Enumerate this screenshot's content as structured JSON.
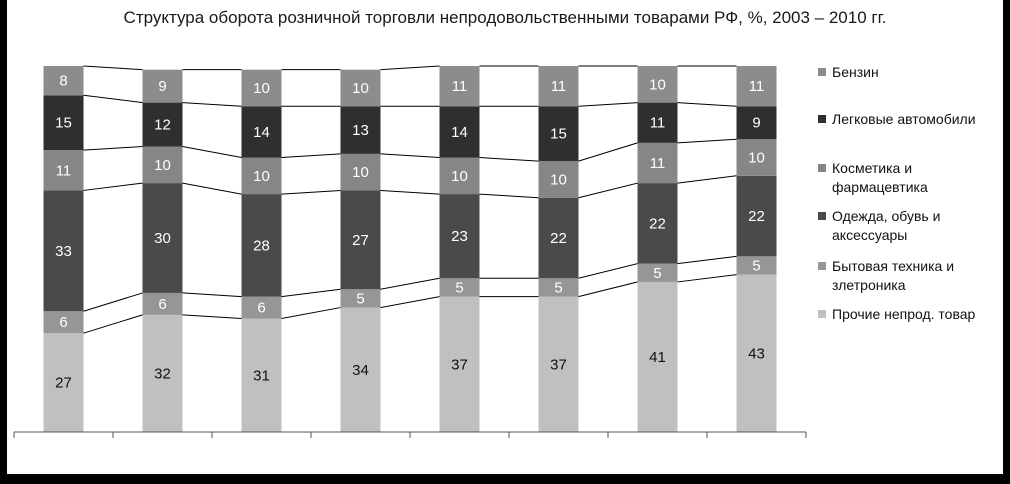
{
  "chart_data": {
    "type": "bar",
    "stacked": true,
    "title": "Структура оборота розничной торговли непродовольственными товарами РФ, %, 2003 – 2010 гг.",
    "xlabel": "",
    "ylabel": "",
    "ylim": [
      0,
      100
    ],
    "grid": false,
    "legend_position": "right",
    "categories": [
      "",
      "",
      "",
      "",
      "",
      "",
      "",
      ""
    ],
    "series": [
      {
        "name": "Прочие непрод. товар",
        "color": "#c0c0c0",
        "label_color": "#111111",
        "values": [
          27,
          32,
          31,
          34,
          37,
          37,
          41,
          43
        ]
      },
      {
        "name": "Бытовая техника и злетроника",
        "legend_lines": [
          "Бытовая техника и",
          "злетроника"
        ],
        "color": "#969696",
        "label_color": "#ffffff",
        "values": [
          6,
          6,
          6,
          5,
          5,
          5,
          5,
          5
        ]
      },
      {
        "name": "Одежда, обувь и аксессуары",
        "legend_lines": [
          "Одежда, обувь и",
          "аксессуары"
        ],
        "color": "#4a4a4a",
        "label_color": "#ffffff",
        "values": [
          33,
          30,
          28,
          27,
          23,
          22,
          22,
          22
        ]
      },
      {
        "name": "Косметика и фармацевтика",
        "legend_lines": [
          "Косметика и",
          "фармацевтика"
        ],
        "color": "#868686",
        "label_color": "#ffffff",
        "values": [
          11,
          10,
          10,
          10,
          10,
          10,
          11,
          10
        ]
      },
      {
        "name": "Легковые автомобили",
        "legend_lines": [
          "Легковые автомобили"
        ],
        "color": "#2f2f2f",
        "label_color": "#ffffff",
        "values": [
          15,
          12,
          14,
          13,
          14,
          15,
          11,
          9
        ]
      },
      {
        "name": "Бензин",
        "legend_lines": [
          "Бензин"
        ],
        "color": "#8c8c8c",
        "label_color": "#ffffff",
        "values": [
          8,
          9,
          10,
          10,
          11,
          11,
          10,
          11
        ]
      }
    ]
  }
}
